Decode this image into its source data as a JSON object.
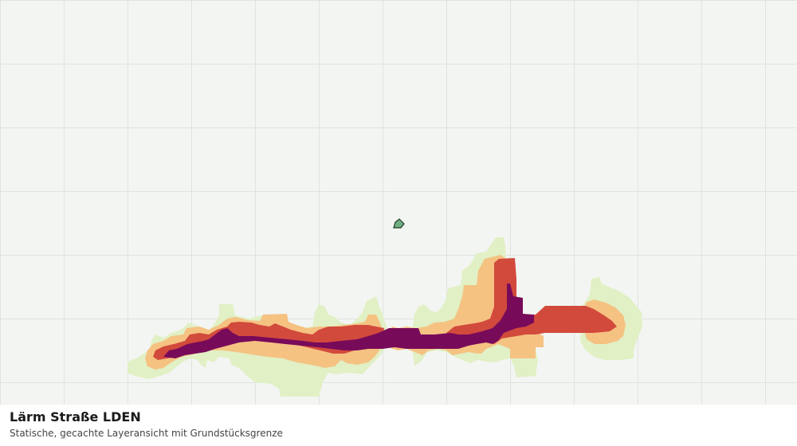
{
  "map": {
    "background_color": "#f3f5f2",
    "grid_color": "#dfe3de",
    "noise_band_colors": {
      "band_1_lowest": "#e1f0c5",
      "band_2": "#f5c282",
      "band_3": "#d24a3c",
      "band_4_highest": "#780a5a"
    },
    "parcel_marker_color": "#6fae7f",
    "parcel_outline_color": "#1f3a28"
  },
  "caption": {
    "title": "Lärm Straße LDEN",
    "subtitle": "Statische, gecachte Layeransicht mit Grundstücksgrenze"
  }
}
